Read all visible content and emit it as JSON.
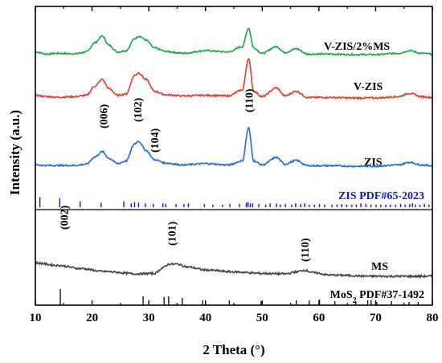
{
  "chart_data": {
    "type": "line",
    "xlabel": "2 Theta (°)",
    "ylabel": "Intensity (a.u.)",
    "xlim": [
      10,
      80
    ],
    "x_ticks": [
      "10",
      "20",
      "30",
      "40",
      "50",
      "60",
      "70",
      "80"
    ],
    "y_ticks_shown": false,
    "grid": false,
    "legend": "none",
    "series": [
      {
        "name": "V-ZIS/2%MS",
        "color": "#1aa84a",
        "baseline": 0.88,
        "noise": 0.006,
        "points": [
          [
            10,
            0.1
          ],
          [
            12,
            0.02
          ],
          [
            14,
            0.05
          ],
          [
            17,
            0.03
          ],
          [
            19,
            0.1
          ],
          [
            20.5,
            0.45
          ],
          [
            21.8,
            0.7
          ],
          [
            23,
            0.35
          ],
          [
            24.5,
            0.1
          ],
          [
            26,
            0.15
          ],
          [
            27.5,
            0.6
          ],
          [
            28.3,
            0.7
          ],
          [
            29.5,
            0.55
          ],
          [
            31,
            0.25
          ],
          [
            33,
            0.12
          ],
          [
            36,
            0.05
          ],
          [
            40,
            0.15
          ],
          [
            44,
            0.1
          ],
          [
            46.5,
            0.3
          ],
          [
            47.6,
            1.0
          ],
          [
            48.5,
            0.25
          ],
          [
            50,
            0.05
          ],
          [
            52.5,
            0.3
          ],
          [
            54,
            0.08
          ],
          [
            56,
            0.22
          ],
          [
            58,
            0.02
          ],
          [
            62,
            0.02
          ],
          [
            66,
            0.0
          ],
          [
            70,
            0.0
          ],
          [
            74,
            0.05
          ],
          [
            76,
            0.15
          ],
          [
            78,
            0.05
          ],
          [
            80,
            0.02
          ]
        ]
      },
      {
        "name": "V-ZIS",
        "color": "#e8392f",
        "baseline": 0.42,
        "noise": 0.006,
        "points": [
          [
            10,
            0.1
          ],
          [
            12,
            0.05
          ],
          [
            14,
            0.03
          ],
          [
            17,
            0.05
          ],
          [
            19,
            0.1
          ],
          [
            20.5,
            0.45
          ],
          [
            21.8,
            0.7
          ],
          [
            23,
            0.35
          ],
          [
            24.5,
            0.1
          ],
          [
            26,
            0.15
          ],
          [
            27.5,
            0.85
          ],
          [
            28.2,
            0.95
          ],
          [
            29.5,
            0.7
          ],
          [
            31,
            0.25
          ],
          [
            33,
            0.12
          ],
          [
            36,
            0.08
          ],
          [
            40,
            0.1
          ],
          [
            44,
            0.08
          ],
          [
            46.5,
            0.3
          ],
          [
            47.6,
            1.5
          ],
          [
            48.5,
            0.25
          ],
          [
            50,
            0.05
          ],
          [
            52.5,
            0.38
          ],
          [
            54,
            0.08
          ],
          [
            56,
            0.25
          ],
          [
            58,
            0.02
          ],
          [
            62,
            0.02
          ],
          [
            66,
            0.0
          ],
          [
            70,
            0.0
          ],
          [
            74,
            0.05
          ],
          [
            76,
            0.18
          ],
          [
            78,
            0.05
          ],
          [
            80,
            0.02
          ]
        ]
      },
      {
        "name": "ZIS",
        "color": "#1f6ed4",
        "baseline": -0.12,
        "noise": 0.006,
        "points": [
          [
            10,
            0.05
          ],
          [
            12,
            0.03
          ],
          [
            14,
            0.03
          ],
          [
            17,
            0.03
          ],
          [
            19,
            0.08
          ],
          [
            20.5,
            0.35
          ],
          [
            21.8,
            0.55
          ],
          [
            23,
            0.3
          ],
          [
            24.5,
            0.1
          ],
          [
            26,
            0.2
          ],
          [
            27.5,
            0.85
          ],
          [
            28.2,
            0.95
          ],
          [
            29.5,
            0.6
          ],
          [
            31,
            0.25
          ],
          [
            33,
            0.12
          ],
          [
            36,
            0.05
          ],
          [
            40,
            0.1
          ],
          [
            44,
            0.05
          ],
          [
            46.5,
            0.2
          ],
          [
            47.6,
            1.45
          ],
          [
            48.5,
            0.2
          ],
          [
            50,
            0.05
          ],
          [
            52.5,
            0.33
          ],
          [
            54,
            0.08
          ],
          [
            56,
            0.22
          ],
          [
            58,
            0.02
          ],
          [
            62,
            0.02
          ],
          [
            66,
            0.0
          ],
          [
            70,
            0.0
          ],
          [
            74,
            0.05
          ],
          [
            76,
            0.15
          ],
          [
            78,
            0.05
          ],
          [
            80,
            0.02
          ]
        ]
      },
      {
        "name": "MS",
        "color": "#444444",
        "baseline": -2.72,
        "noise": 0.008,
        "points": [
          [
            10,
            0.35
          ],
          [
            14,
            0.25
          ],
          [
            18,
            0.12
          ],
          [
            22,
            0.0
          ],
          [
            28,
            -0.1
          ],
          [
            31,
            -0.08
          ],
          [
            32.5,
            0.15
          ],
          [
            33.5,
            0.3
          ],
          [
            35,
            0.3
          ],
          [
            37,
            0.18
          ],
          [
            40,
            0.06
          ],
          [
            45,
            -0.02
          ],
          [
            50,
            -0.08
          ],
          [
            54,
            -0.1
          ],
          [
            56,
            -0.02
          ],
          [
            57.5,
            0.05
          ],
          [
            59,
            -0.05
          ],
          [
            62,
            -0.15
          ],
          [
            70,
            -0.2
          ],
          [
            80,
            -0.2
          ]
        ]
      }
    ],
    "series_labels": [
      {
        "series": "V-ZIS/2%MS",
        "text": "V-ZIS/2%MS"
      },
      {
        "series": "V-ZIS",
        "text": "V-ZIS"
      },
      {
        "series": "ZIS",
        "text": "ZIS"
      },
      {
        "series": "MS",
        "text": "MS"
      }
    ],
    "peak_annotations": [
      {
        "text": "(006)",
        "x": 22
      },
      {
        "text": "(102)",
        "x": 28
      },
      {
        "text": "(104)",
        "x": 31
      },
      {
        "text": "(110)",
        "x": 47.6
      },
      {
        "text": "(002)",
        "x": 15
      },
      {
        "text": "(101)",
        "x": 34
      },
      {
        "text": "(110)",
        "x": 57.5
      }
    ],
    "reference_patterns": [
      {
        "label": "ZIS PDF#65-2023",
        "color": "#1414d2",
        "positions": [
          10.8,
          14.3,
          17.9,
          21.6,
          25.6,
          26.9,
          27.5,
          28.2,
          29.4,
          30.8,
          32.5,
          33.0,
          34.8,
          36.2,
          37.0,
          39.8,
          41.3,
          43.0,
          44.3,
          46.0,
          47.2,
          47.5,
          47.9,
          48.3,
          49.4,
          50.6,
          51.4,
          52.5,
          53.2,
          54.1,
          55.2,
          55.9,
          56.8,
          57.5,
          58.3,
          59.2,
          60.1,
          61.0,
          62.3,
          63.2,
          64.0,
          64.9,
          65.8,
          66.6,
          67.4,
          68.3,
          69.2,
          70.1,
          70.9,
          71.8,
          72.6,
          73.5,
          74.4,
          75.2,
          76.0,
          76.5,
          77.0,
          77.8,
          78.6,
          79.4
        ],
        "heights": [
          0.8,
          0.7,
          0.45,
          0.35,
          0.45,
          0.3,
          0.4,
          0.35,
          0.3,
          0.25,
          0.3,
          0.25,
          0.25,
          0.25,
          0.3,
          0.25,
          0.2,
          0.2,
          0.25,
          0.25,
          0.35,
          0.4,
          0.3,
          0.3,
          0.25,
          0.2,
          0.3,
          0.3,
          0.2,
          0.25,
          0.2,
          0.3,
          0.25,
          0.3,
          0.2,
          0.2,
          0.25,
          0.2,
          0.2,
          0.2,
          0.25,
          0.2,
          0.2,
          0.2,
          0.3,
          0.25,
          0.2,
          0.2,
          0.2,
          0.2,
          0.2,
          0.2,
          0.25,
          0.2,
          0.25,
          0.3,
          0.2,
          0.2,
          0.25,
          0.2
        ]
      },
      {
        "label_main": "MoS",
        "label_sub": "2",
        "label_rest": " PDF#37-1492",
        "color": "#111111",
        "positions": [
          14.4,
          29.0,
          32.7,
          33.5,
          35.9,
          39.5,
          44.2,
          49.8,
          56.0,
          58.3,
          60.1,
          62.8,
          66.5,
          68.6,
          69.2,
          70.2,
          72.8,
          75.9,
          77.5
        ],
        "heights": [
          1.0,
          0.55,
          0.5,
          0.55,
          0.45,
          0.3,
          0.3,
          0.25,
          0.3,
          0.3,
          0.35,
          0.25,
          0.25,
          0.3,
          0.3,
          0.2,
          0.25,
          0.2,
          0.2
        ]
      }
    ]
  }
}
